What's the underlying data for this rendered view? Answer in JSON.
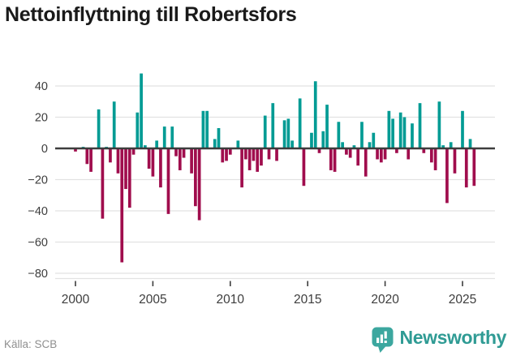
{
  "title": "Nettoinflyttning till Robertsfors",
  "footer": {
    "source": "Källa: SCB",
    "brand": "Newsworthy"
  },
  "colors": {
    "positive_bar": "#009B94",
    "negative_bar": "#A00D4D",
    "grid": "#E2E2E2",
    "zero_line": "#3D3D3D",
    "axis_text": "#3D3D3D",
    "title_text": "#1A1A1A",
    "source_text": "#8F8F8F",
    "brand_icon": "#3CA79F",
    "brand_text": "#2F9B94"
  },
  "chart_data": {
    "type": "bar",
    "title": "Nettoinflyttning till Robertsfors",
    "x_unit": "quarter",
    "start_period": "2000 Q1",
    "end_period": "2025 Q4",
    "values": [
      -2,
      0,
      1,
      -10,
      -15,
      0,
      25,
      -45,
      1,
      -9,
      30,
      -16,
      -73,
      -26,
      -38,
      -4,
      23,
      48,
      2,
      -13,
      -18,
      5,
      -25,
      14,
      -42,
      14,
      -5,
      -14,
      -6,
      0,
      -16,
      -37,
      -46,
      24,
      24,
      0,
      6,
      13,
      -9,
      -8,
      -4,
      0,
      5,
      -25,
      -7,
      -14,
      -8,
      -15,
      -11,
      21,
      -7,
      29,
      -8,
      0,
      18,
      19,
      5,
      0,
      32,
      -24,
      0,
      10,
      43,
      -3,
      11,
      28,
      -14,
      -15,
      17,
      4,
      -4,
      -6,
      2,
      -11,
      17,
      -18,
      4,
      10,
      -7,
      -9,
      -7,
      24,
      19,
      -3,
      23,
      20,
      -7,
      16,
      0,
      29,
      -3,
      0,
      -9,
      -14,
      30,
      2,
      -35,
      4,
      -16,
      0,
      24,
      -25,
      6,
      -24
    ],
    "x_tick_labels": [
      "2000",
      "2005",
      "2010",
      "2015",
      "2020",
      "2025"
    ],
    "y_ticks": [
      40,
      20,
      0,
      -20,
      -40,
      -60,
      -80
    ],
    "y_tick_labels": [
      "40",
      "20",
      "0",
      "−20",
      "−40",
      "−60",
      "−80"
    ],
    "ylim": [
      -80,
      50
    ],
    "grid": "horizontal",
    "legend": "none",
    "positive_color": "#009B94",
    "negative_color": "#A00D4D"
  }
}
